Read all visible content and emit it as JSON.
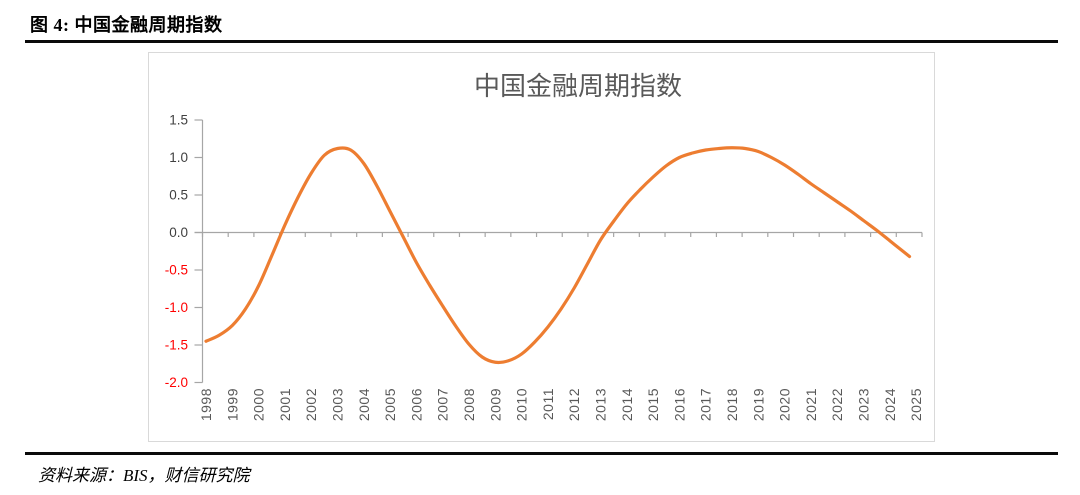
{
  "figure": {
    "caption": "图 4: 中国金融周期指数",
    "source": "资料来源：BIS，财信研究院"
  },
  "chart_data": {
    "type": "line",
    "title": "中国金融周期指数",
    "title_color": "#595959",
    "grid": false,
    "legend": false,
    "x_axis": {
      "tick_labels": [
        "1998",
        "1999",
        "2000",
        "2001",
        "2002",
        "2003",
        "2004",
        "2005",
        "2006",
        "2007",
        "2008",
        "2009",
        "2010",
        "2011",
        "2012",
        "2013",
        "2014",
        "2015",
        "2016",
        "2017",
        "2018",
        "2019",
        "2020",
        "2021",
        "2022",
        "2023",
        "2024",
        "2025"
      ],
      "label_color": "#595959",
      "axis_color": "#A6A6A6",
      "range": [
        1997.8,
        2025.2
      ]
    },
    "y_axis": {
      "tick_labels": [
        "1.5",
        "1.0",
        "0.5",
        "0.0",
        "-0.5",
        "-1.0",
        "-1.5",
        "-2.0"
      ],
      "range": [
        -2.0,
        1.5
      ],
      "positive_label_color": "#404040",
      "negative_label_color": "#FF0000",
      "axis_color": "#A6A6A6"
    },
    "series": [
      {
        "name": "中国金融周期指数",
        "color": "#ED7D31",
        "points": [
          [
            1998.0,
            -1.45
          ],
          [
            1998.5,
            -1.37
          ],
          [
            1999.0,
            -1.24
          ],
          [
            1999.5,
            -1.02
          ],
          [
            2000.0,
            -0.71
          ],
          [
            2000.5,
            -0.31
          ],
          [
            2001.0,
            0.1
          ],
          [
            2001.5,
            0.47
          ],
          [
            2002.0,
            0.79
          ],
          [
            2002.5,
            1.03
          ],
          [
            2003.0,
            1.12
          ],
          [
            2003.5,
            1.1
          ],
          [
            2004.0,
            0.92
          ],
          [
            2004.5,
            0.62
          ],
          [
            2005.0,
            0.28
          ],
          [
            2005.5,
            -0.06
          ],
          [
            2006.0,
            -0.4
          ],
          [
            2006.5,
            -0.7
          ],
          [
            2007.0,
            -0.98
          ],
          [
            2007.5,
            -1.25
          ],
          [
            2008.0,
            -1.49
          ],
          [
            2008.5,
            -1.66
          ],
          [
            2009.0,
            -1.73
          ],
          [
            2009.5,
            -1.71
          ],
          [
            2010.0,
            -1.62
          ],
          [
            2010.5,
            -1.46
          ],
          [
            2011.0,
            -1.26
          ],
          [
            2011.5,
            -1.02
          ],
          [
            2012.0,
            -0.74
          ],
          [
            2012.5,
            -0.42
          ],
          [
            2013.0,
            -0.1
          ],
          [
            2013.5,
            0.15
          ],
          [
            2014.0,
            0.38
          ],
          [
            2014.5,
            0.57
          ],
          [
            2015.0,
            0.74
          ],
          [
            2015.5,
            0.89
          ],
          [
            2016.0,
            1.0
          ],
          [
            2016.5,
            1.06
          ],
          [
            2017.0,
            1.1
          ],
          [
            2017.5,
            1.12
          ],
          [
            2018.0,
            1.13
          ],
          [
            2018.5,
            1.12
          ],
          [
            2019.0,
            1.08
          ],
          [
            2019.5,
            1.0
          ],
          [
            2020.0,
            0.9
          ],
          [
            2020.5,
            0.78
          ],
          [
            2021.0,
            0.65
          ],
          [
            2021.5,
            0.53
          ],
          [
            2022.0,
            0.41
          ],
          [
            2022.5,
            0.29
          ],
          [
            2023.0,
            0.16
          ],
          [
            2023.5,
            0.03
          ],
          [
            2024.0,
            -0.11
          ],
          [
            2024.5,
            -0.25
          ],
          [
            2024.75,
            -0.32
          ]
        ]
      }
    ]
  }
}
